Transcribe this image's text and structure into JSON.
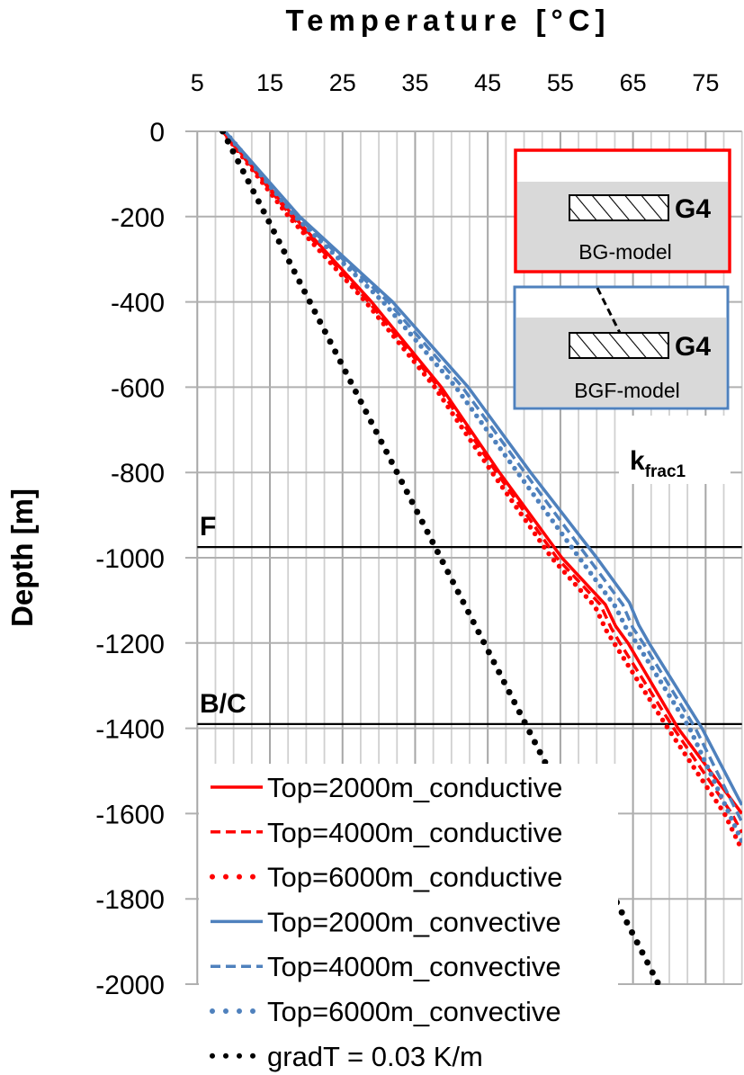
{
  "chart_data": {
    "type": "line",
    "title": "Temperature  [°C]",
    "xlabel": "Temperature  [°C]",
    "ylabel": "Depth [m]",
    "xlim": [
      5,
      80
    ],
    "ylim": [
      -2000,
      0
    ],
    "x_axis_position": "top",
    "x_ticks": [
      5,
      15,
      25,
      35,
      45,
      55,
      65,
      75
    ],
    "x_minor_step": 2.5,
    "y_ticks": [
      0,
      -200,
      -400,
      -600,
      -800,
      -1000,
      -1200,
      -1400,
      -1600,
      -1800,
      -2000
    ],
    "grid": true,
    "legend_position": "bottom-left",
    "colors": {
      "red": "#ff0000",
      "blue": "#4f81bd",
      "black": "#000000"
    },
    "reference_lines": [
      {
        "label": "F",
        "depth": -975
      },
      {
        "label": "B/C",
        "depth": -1390
      }
    ],
    "series": [
      {
        "name": "Top=2000m_conductive",
        "color": "#ff0000",
        "style": "solid",
        "points": [
          [
            8.5,
            0
          ],
          [
            18.3,
            -200
          ],
          [
            29.0,
            -400
          ],
          [
            38.6,
            -600
          ],
          [
            46.6,
            -800
          ],
          [
            55.2,
            -1000
          ],
          [
            61.2,
            -1110
          ],
          [
            62.6,
            -1160
          ],
          [
            64.3,
            -1200
          ],
          [
            71.2,
            -1400
          ],
          [
            80.0,
            -1600
          ]
        ]
      },
      {
        "name": "Top=4000m_conductive",
        "color": "#ff0000",
        "style": "dashed",
        "points": [
          [
            8.5,
            0
          ],
          [
            18.0,
            -200
          ],
          [
            28.6,
            -400
          ],
          [
            38.2,
            -600
          ],
          [
            46.2,
            -800
          ],
          [
            54.5,
            -1000
          ],
          [
            60.5,
            -1110
          ],
          [
            62.0,
            -1165
          ],
          [
            63.2,
            -1200
          ],
          [
            70.6,
            -1400
          ],
          [
            78.6,
            -1600
          ],
          [
            80.0,
            -1645
          ]
        ]
      },
      {
        "name": "Top=6000m_conductive",
        "color": "#ff0000",
        "style": "dotted",
        "points": [
          [
            8.5,
            0
          ],
          [
            17.6,
            -200
          ],
          [
            28.2,
            -400
          ],
          [
            37.7,
            -600
          ],
          [
            45.6,
            -800
          ],
          [
            53.8,
            -1000
          ],
          [
            59.8,
            -1115
          ],
          [
            61.3,
            -1170
          ],
          [
            62.4,
            -1200
          ],
          [
            69.8,
            -1400
          ],
          [
            77.6,
            -1600
          ],
          [
            80.0,
            -1685
          ]
        ]
      },
      {
        "name": "Top=2000m_convective",
        "color": "#4f81bd",
        "style": "solid",
        "points": [
          [
            8.8,
            0
          ],
          [
            19.1,
            -200
          ],
          [
            31.9,
            -400
          ],
          [
            42.3,
            -600
          ],
          [
            50.9,
            -800
          ],
          [
            60.0,
            -1000
          ],
          [
            64.5,
            -1105
          ],
          [
            65.8,
            -1158
          ],
          [
            67.2,
            -1200
          ],
          [
            74.5,
            -1400
          ],
          [
            80.0,
            -1580
          ]
        ]
      },
      {
        "name": "Top=4000m_convective",
        "color": "#4f81bd",
        "style": "dashed",
        "points": [
          [
            8.8,
            0
          ],
          [
            18.8,
            -200
          ],
          [
            31.3,
            -400
          ],
          [
            41.5,
            -600
          ],
          [
            50.1,
            -800
          ],
          [
            58.8,
            -1000
          ],
          [
            63.6,
            -1110
          ],
          [
            65.0,
            -1165
          ],
          [
            66.4,
            -1200
          ],
          [
            73.6,
            -1400
          ],
          [
            80.0,
            -1620
          ]
        ]
      },
      {
        "name": "Top=6000m_convective",
        "color": "#4f81bd",
        "style": "dotted",
        "points": [
          [
            8.8,
            0
          ],
          [
            18.5,
            -200
          ],
          [
            30.6,
            -400
          ],
          [
            40.6,
            -600
          ],
          [
            49.1,
            -800
          ],
          [
            57.6,
            -1000
          ],
          [
            62.6,
            -1115
          ],
          [
            64.2,
            -1170
          ],
          [
            65.5,
            -1200
          ],
          [
            72.8,
            -1400
          ],
          [
            80.0,
            -1665
          ]
        ]
      },
      {
        "name": "gradT = 0.03 K/m",
        "color": "#000000",
        "style": "dotted-black",
        "points": [
          [
            8.5,
            0
          ],
          [
            68.5,
            -2000
          ]
        ]
      }
    ],
    "annotations": {
      "bg_model": {
        "unit": "G4",
        "label": "BG-model",
        "border": "#ff0000"
      },
      "bgf_model": {
        "unit": "G4",
        "label": "BGF-model",
        "border": "#4f81bd"
      },
      "k_label": {
        "main": "k",
        "sub": "frac1"
      }
    }
  }
}
